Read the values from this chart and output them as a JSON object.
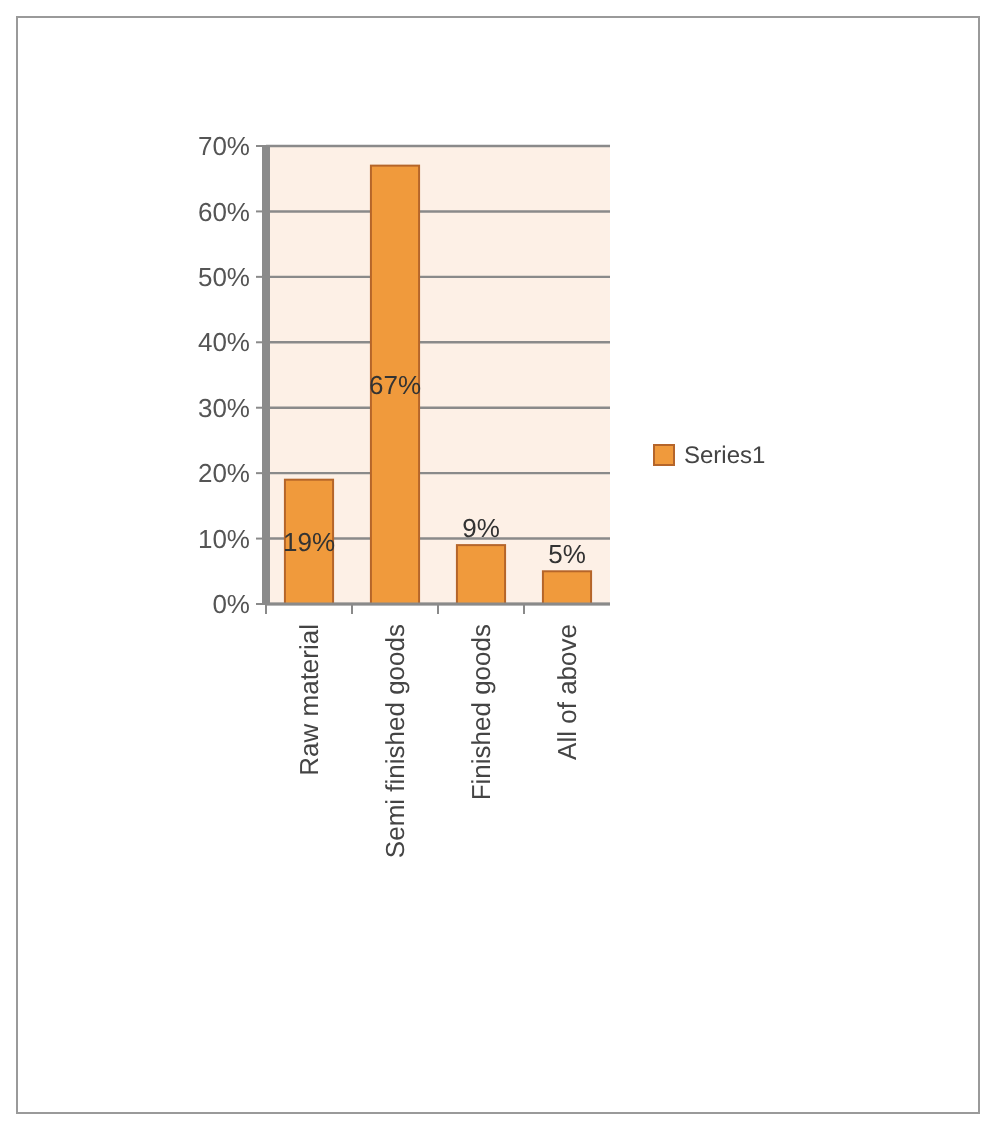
{
  "chart_data": {
    "type": "bar",
    "categories": [
      "Raw material",
      "Semi finished goods",
      "Finished goods",
      "All of above"
    ],
    "series": [
      {
        "name": "Series1",
        "color": "#f09a3c",
        "values": [
          19,
          67,
          9,
          5
        ]
      }
    ],
    "ylim": [
      0,
      70
    ],
    "yticks": [
      {
        "value": 0,
        "label": "0%"
      },
      {
        "value": 10,
        "label": "10%"
      },
      {
        "value": 20,
        "label": "20%"
      },
      {
        "value": 30,
        "label": "30%"
      },
      {
        "value": 40,
        "label": "40%"
      },
      {
        "value": 50,
        "label": "50%"
      },
      {
        "value": 60,
        "label": "60%"
      },
      {
        "value": 70,
        "label": "70%"
      }
    ],
    "value_labels": [
      "19%",
      "67%",
      "9%",
      "5%"
    ],
    "grid": "y",
    "legend": "right"
  }
}
